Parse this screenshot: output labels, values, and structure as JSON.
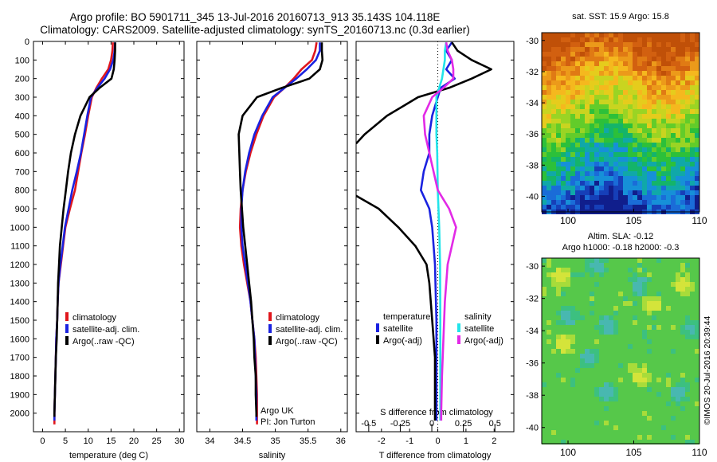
{
  "header": {
    "line1": "Argo profile: BO 5901711_345 13-Jul-2016 20160713_913 35.143S 104.118E",
    "line2": "Climatology: CARS2009. Satellite-adjusted climatology: synTS_20160713.nc (0.3d earlier)"
  },
  "credit": "©IMOS 20-Jul-2016 20:39:44",
  "colors": {
    "climatology": "#e0161c",
    "satellite": "#1a22e0",
    "argo": "#000000",
    "sat_sal": "#22e4ea",
    "argo_sal": "#e22ae6"
  },
  "chart_data": [
    {
      "type": "line",
      "xlabel": "temperature (deg C)",
      "ylabel": "",
      "xlim": [
        -2,
        31
      ],
      "ylim": [
        2100,
        0
      ],
      "xticks": [
        "0",
        "5",
        "10",
        "15",
        "20",
        "25",
        "30"
      ],
      "yticks": [
        "0",
        "100",
        "200",
        "300",
        "400",
        "500",
        "600",
        "700",
        "800",
        "900",
        "1000",
        "1100",
        "1200",
        "1300",
        "1400",
        "1500",
        "1600",
        "1700",
        "1800",
        "1900",
        "2000"
      ],
      "legend": [
        "climatology",
        "satellite-adj. clim.",
        "Argo(..raw -QC)"
      ],
      "series": [
        {
          "name": "climatology",
          "color": "#e0161c",
          "points": [
            [
              15.4,
              5
            ],
            [
              15.3,
              50
            ],
            [
              15.0,
              100
            ],
            [
              14.4,
              150
            ],
            [
              13.0,
              200
            ],
            [
              11.8,
              250
            ],
            [
              10.8,
              300
            ],
            [
              10.0,
              400
            ],
            [
              9.3,
              500
            ],
            [
              8.5,
              600
            ],
            [
              7.8,
              700
            ],
            [
              7.1,
              800
            ],
            [
              6.0,
              900
            ],
            [
              5.0,
              1000
            ],
            [
              4.5,
              1100
            ],
            [
              4.0,
              1200
            ],
            [
              3.5,
              1300
            ],
            [
              3.3,
              1400
            ],
            [
              3.2,
              1500
            ],
            [
              3.0,
              1600
            ],
            [
              2.9,
              1700
            ],
            [
              2.8,
              1800
            ],
            [
              2.7,
              1900
            ],
            [
              2.6,
              2000
            ],
            [
              2.6,
              2060
            ]
          ]
        },
        {
          "name": "satellite-adj. clim.",
          "color": "#1a22e0",
          "points": [
            [
              15.9,
              5
            ],
            [
              15.8,
              50
            ],
            [
              15.5,
              100
            ],
            [
              14.8,
              150
            ],
            [
              13.6,
              200
            ],
            [
              12.0,
              250
            ],
            [
              10.6,
              300
            ],
            [
              9.8,
              400
            ],
            [
              9.1,
              500
            ],
            [
              8.4,
              600
            ],
            [
              7.5,
              700
            ],
            [
              6.5,
              800
            ],
            [
              5.7,
              900
            ],
            [
              4.9,
              1000
            ],
            [
              4.4,
              1100
            ],
            [
              3.9,
              1200
            ],
            [
              3.5,
              1300
            ],
            [
              3.3,
              1400
            ],
            [
              3.2,
              1500
            ],
            [
              3.0,
              1600
            ],
            [
              2.9,
              1700
            ],
            [
              2.8,
              1800
            ],
            [
              2.7,
              1900
            ],
            [
              2.6,
              2000
            ],
            [
              2.6,
              2040
            ]
          ]
        },
        {
          "name": "Argo(..raw -QC)",
          "color": "#000000",
          "points": [
            [
              15.9,
              5
            ],
            [
              15.9,
              50
            ],
            [
              15.8,
              100
            ],
            [
              15.6,
              150
            ],
            [
              15.1,
              200
            ],
            [
              12.5,
              250
            ],
            [
              10.3,
              300
            ],
            [
              8.3,
              400
            ],
            [
              7.1,
              500
            ],
            [
              6.2,
              600
            ],
            [
              5.6,
              700
            ],
            [
              5.1,
              800
            ],
            [
              4.6,
              900
            ],
            [
              4.2,
              1000
            ],
            [
              3.8,
              1100
            ],
            [
              3.6,
              1200
            ],
            [
              3.4,
              1300
            ],
            [
              3.3,
              1400
            ],
            [
              3.2,
              1500
            ],
            [
              3.1,
              1600
            ],
            [
              2.9,
              1700
            ],
            [
              2.8,
              1800
            ],
            [
              2.7,
              1900
            ],
            [
              2.6,
              2000
            ],
            [
              2.6,
              2020
            ]
          ]
        }
      ]
    },
    {
      "type": "line",
      "xlabel": "salinity",
      "xlim": [
        33.8,
        36.1
      ],
      "ylim": [
        2100,
        0
      ],
      "xticks": [
        "34",
        "34.5",
        "35",
        "35.5",
        "36"
      ],
      "legend": [
        "climatology",
        "satellite-adj. clim.",
        "Argo(..raw -QC)"
      ],
      "annotation": [
        "Argo UK",
        "PI: Jon Turton"
      ],
      "series": [
        {
          "name": "climatology",
          "color": "#e0161c",
          "points": [
            [
              35.63,
              5
            ],
            [
              35.61,
              50
            ],
            [
              35.56,
              100
            ],
            [
              35.4,
              150
            ],
            [
              35.28,
              200
            ],
            [
              35.14,
              250
            ],
            [
              34.98,
              300
            ],
            [
              34.82,
              400
            ],
            [
              34.71,
              500
            ],
            [
              34.62,
              600
            ],
            [
              34.55,
              700
            ],
            [
              34.5,
              800
            ],
            [
              34.47,
              900
            ],
            [
              34.46,
              1000
            ],
            [
              34.48,
              1100
            ],
            [
              34.52,
              1200
            ],
            [
              34.57,
              1300
            ],
            [
              34.62,
              1400
            ],
            [
              34.65,
              1500
            ],
            [
              34.68,
              1600
            ],
            [
              34.7,
              1700
            ],
            [
              34.71,
              1800
            ],
            [
              34.72,
              1900
            ],
            [
              34.72,
              2000
            ],
            [
              34.72,
              2060
            ]
          ]
        },
        {
          "name": "satellite-adj. clim.",
          "color": "#1a22e0",
          "points": [
            [
              35.68,
              5
            ],
            [
              35.68,
              50
            ],
            [
              35.62,
              100
            ],
            [
              35.48,
              150
            ],
            [
              35.32,
              200
            ],
            [
              35.14,
              250
            ],
            [
              34.96,
              300
            ],
            [
              34.8,
              400
            ],
            [
              34.68,
              500
            ],
            [
              34.6,
              600
            ],
            [
              34.54,
              700
            ],
            [
              34.5,
              800
            ],
            [
              34.48,
              900
            ],
            [
              34.48,
              1000
            ],
            [
              34.5,
              1100
            ],
            [
              34.54,
              1200
            ],
            [
              34.58,
              1300
            ],
            [
              34.62,
              1400
            ],
            [
              34.65,
              1500
            ],
            [
              34.68,
              1600
            ],
            [
              34.69,
              1700
            ],
            [
              34.7,
              1800
            ],
            [
              34.71,
              1900
            ],
            [
              34.71,
              2000
            ],
            [
              34.71,
              2040
            ]
          ]
        },
        {
          "name": "Argo(..raw -QC)",
          "color": "#000000",
          "points": [
            [
              35.71,
              5
            ],
            [
              35.71,
              50
            ],
            [
              35.72,
              100
            ],
            [
              35.68,
              150
            ],
            [
              35.52,
              200
            ],
            [
              35.1,
              250
            ],
            [
              34.72,
              300
            ],
            [
              34.5,
              400
            ],
            [
              34.44,
              500
            ],
            [
              34.45,
              600
            ],
            [
              34.46,
              700
            ],
            [
              34.47,
              800
            ],
            [
              34.49,
              900
            ],
            [
              34.51,
              1000
            ],
            [
              34.54,
              1100
            ],
            [
              34.57,
              1200
            ],
            [
              34.6,
              1300
            ],
            [
              34.63,
              1400
            ],
            [
              34.65,
              1500
            ],
            [
              34.67,
              1600
            ],
            [
              34.68,
              1700
            ],
            [
              34.7,
              1800
            ],
            [
              34.7,
              1900
            ],
            [
              34.71,
              2000
            ],
            [
              34.71,
              2020
            ]
          ]
        }
      ]
    },
    {
      "type": "line",
      "xlabel": "T difference from climatology",
      "xlim": [
        -2.9,
        2.7
      ],
      "ylim": [
        2100,
        0
      ],
      "xticks": [
        "-2",
        "-1",
        "0",
        "1",
        "2"
      ],
      "top_axis_label": "S difference from climatology",
      "top_ticks": [
        "-0.5",
        "-0.25",
        "0",
        "0.25",
        "0.5"
      ],
      "top_xlim": [
        -0.6,
        0.65
      ],
      "legend_headers": [
        "temperature",
        "salinity"
      ],
      "legend": [
        "satellite",
        "Argo(-adj)",
        "satellite",
        "Argo(-adj)"
      ],
      "series": [
        {
          "name": "temperature satellite",
          "color": "#1a22e0",
          "points": [
            [
              0.5,
              5
            ],
            [
              0.3,
              50
            ],
            [
              0.5,
              100
            ],
            [
              0.3,
              150
            ],
            [
              0.6,
              200
            ],
            [
              0.1,
              250
            ],
            [
              0.0,
              300
            ],
            [
              -0.2,
              400
            ],
            [
              -0.3,
              500
            ],
            [
              -0.3,
              600
            ],
            [
              -0.5,
              700
            ],
            [
              -0.6,
              800
            ],
            [
              -0.3,
              900
            ],
            [
              -0.2,
              1000
            ],
            [
              -0.1,
              1200
            ],
            [
              -0.05,
              1500
            ],
            [
              -0.05,
              2000
            ],
            [
              -0.05,
              2040
            ]
          ]
        },
        {
          "name": "temperature Argo(-adj)",
          "color": "#000000",
          "points": [
            [
              0.5,
              5
            ],
            [
              0.7,
              50
            ],
            [
              1.2,
              100
            ],
            [
              1.9,
              150
            ],
            [
              1.2,
              200
            ],
            [
              0.4,
              250
            ],
            [
              -0.7,
              300
            ],
            [
              -1.8,
              400
            ],
            [
              -2.6,
              500
            ],
            [
              -2.9,
              550
            ]
          ]
        },
        {
          "name": "temperature Argo(-adj) deep",
          "color": "#000000",
          "points": [
            [
              -2.9,
              830
            ],
            [
              -2.1,
              900
            ],
            [
              -1.4,
              1000
            ],
            [
              -0.8,
              1100
            ],
            [
              -0.4,
              1200
            ],
            [
              -0.3,
              1300
            ],
            [
              -0.2,
              1500
            ],
            [
              -0.1,
              1700
            ],
            [
              -0.1,
              2000
            ],
            [
              -0.1,
              2040
            ]
          ]
        },
        {
          "name": "salinity satellite",
          "color": "#22e4ea",
          "points": [
            [
              0.3,
              5
            ],
            [
              0.25,
              50
            ],
            [
              0.25,
              100
            ],
            [
              0.2,
              150
            ],
            [
              0.15,
              200
            ],
            [
              0.05,
              250
            ],
            [
              -0.05,
              300
            ],
            [
              -0.05,
              400
            ],
            [
              -0.05,
              500
            ],
            [
              -0.02,
              600
            ],
            [
              0.0,
              800
            ],
            [
              0.05,
              1000
            ],
            [
              0.08,
              1200
            ],
            [
              0.09,
              1500
            ],
            [
              0.09,
              2000
            ],
            [
              0.09,
              2040
            ]
          ]
        },
        {
          "name": "salinity Argo(-adj)",
          "color": "#e22ae6",
          "points": [
            [
              0.3,
              5
            ],
            [
              0.35,
              50
            ],
            [
              0.5,
              100
            ],
            [
              0.55,
              150
            ],
            [
              0.55,
              200
            ],
            [
              0.2,
              250
            ],
            [
              -0.2,
              300
            ],
            [
              -0.5,
              400
            ],
            [
              -0.45,
              500
            ],
            [
              -0.3,
              600
            ],
            [
              -0.15,
              700
            ],
            [
              0.0,
              800
            ],
            [
              0.4,
              900
            ],
            [
              0.65,
              1000
            ],
            [
              0.5,
              1100
            ],
            [
              0.35,
              1200
            ],
            [
              0.25,
              1400
            ],
            [
              0.2,
              1600
            ],
            [
              0.15,
              1800
            ],
            [
              0.12,
              2000
            ],
            [
              0.12,
              2040
            ]
          ]
        }
      ]
    },
    {
      "type": "heatmap",
      "title": "sat. SST: 15.9 Argo: 15.8",
      "xticks": [
        "100",
        "105",
        "110"
      ],
      "yticks": [
        "-30",
        "-32",
        "-34",
        "-36",
        "-38",
        "-40"
      ],
      "xlim": [
        98,
        110
      ],
      "ylim": [
        -41,
        -29.5
      ]
    },
    {
      "type": "heatmap",
      "title_line1": "Altim. SLA: -0.12",
      "title_line2": "Argo h1000: -0.18 h2000: -0.3",
      "xticks": [
        "100",
        "105",
        "110"
      ],
      "yticks": [
        "-30",
        "-32",
        "-34",
        "-36",
        "-38",
        "-40"
      ],
      "xlim": [
        98,
        110
      ],
      "ylim": [
        -41,
        -29.5
      ]
    }
  ]
}
